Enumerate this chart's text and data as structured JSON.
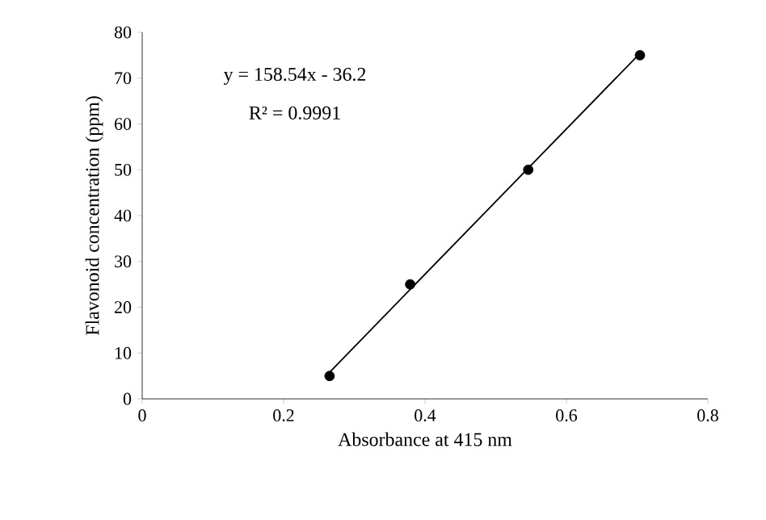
{
  "chart_data": {
    "type": "scatter",
    "xlabel": "Absorbance at 415 nm",
    "ylabel": "Flavonoid concentration (ppm)",
    "annotations": [
      "y = 158.54x - 36.2",
      "R² = 0.9991"
    ],
    "series": [
      {
        "x": [
          0.265,
          0.379,
          0.546,
          0.704
        ],
        "values": [
          5,
          25,
          50,
          75
        ],
        "color": "#000000",
        "marker": "circle"
      },
      {
        "type": "line",
        "x": [
          0.265,
          0.704
        ],
        "values": [
          5.8,
          75.4
        ],
        "color": "#000000",
        "marker": "none",
        "line_style": "solid"
      }
    ],
    "xlim": [
      0,
      0.8
    ],
    "xticks": [
      0,
      0.2,
      0.4,
      0.6,
      0.8
    ],
    "ylim": [
      0,
      80
    ],
    "yticks": [
      0,
      10,
      20,
      30,
      40,
      50,
      60,
      70,
      80
    ]
  }
}
